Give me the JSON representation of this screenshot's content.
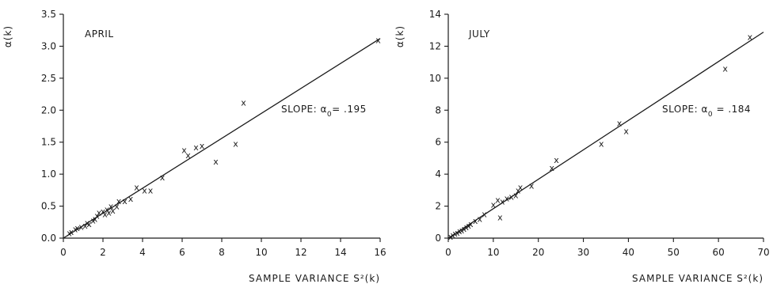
{
  "chart_data": [
    {
      "type": "scatter",
      "panel_label": "APRIL",
      "xlabel": "SAMPLE VARIANCE S²(k)",
      "ylabel": "α(k)",
      "xlim": [
        0,
        16
      ],
      "ylim": [
        0,
        3.5
      ],
      "x_ticks": [
        "0",
        "2",
        "4",
        "6",
        "8",
        "10",
        "12",
        "14",
        "16"
      ],
      "y_ticks": [
        "0.0",
        "0.5",
        "1.0",
        "1.5",
        "2.0",
        "2.5",
        "3.0",
        "3.5"
      ],
      "fit_slope": 0.195,
      "annotation": "SLOPE: α0= .195",
      "marker": "x",
      "points": [
        [
          0.3,
          0.08
        ],
        [
          0.4,
          0.1
        ],
        [
          0.6,
          0.14
        ],
        [
          0.7,
          0.16
        ],
        [
          0.9,
          0.18
        ],
        [
          1.1,
          0.2
        ],
        [
          1.2,
          0.24
        ],
        [
          1.3,
          0.22
        ],
        [
          1.5,
          0.28
        ],
        [
          1.6,
          0.3
        ],
        [
          1.7,
          0.35
        ],
        [
          1.8,
          0.4
        ],
        [
          2.0,
          0.42
        ],
        [
          2.1,
          0.38
        ],
        [
          2.2,
          0.45
        ],
        [
          2.3,
          0.4
        ],
        [
          2.4,
          0.5
        ],
        [
          2.5,
          0.43
        ],
        [
          2.7,
          0.5
        ],
        [
          2.8,
          0.58
        ],
        [
          3.1,
          0.58
        ],
        [
          3.4,
          0.62
        ],
        [
          3.7,
          0.8
        ],
        [
          4.1,
          0.75
        ],
        [
          4.4,
          0.75
        ],
        [
          5.0,
          0.95
        ],
        [
          6.1,
          1.38
        ],
        [
          6.3,
          1.3
        ],
        [
          6.7,
          1.42
        ],
        [
          7.0,
          1.45
        ],
        [
          7.7,
          1.2
        ],
        [
          8.7,
          1.48
        ],
        [
          9.1,
          2.12
        ],
        [
          15.9,
          3.1
        ]
      ]
    },
    {
      "type": "scatter",
      "panel_label": "JULY",
      "xlabel": "SAMPLE VARIANCE S²(k)",
      "ylabel": "α(k)",
      "xlim": [
        0,
        70
      ],
      "ylim": [
        0,
        14
      ],
      "x_ticks": [
        "0",
        "10",
        "20",
        "30",
        "40",
        "50",
        "60",
        "70"
      ],
      "y_ticks": [
        "0",
        "2",
        "4",
        "6",
        "8",
        "10",
        "12",
        "14"
      ],
      "fit_slope": 0.184,
      "annotation": "SLOPE: α0 = .184",
      "marker": "x",
      "points": [
        [
          0.5,
          0.1
        ],
        [
          1.0,
          0.2
        ],
        [
          1.5,
          0.3
        ],
        [
          2.0,
          0.35
        ],
        [
          2.5,
          0.45
        ],
        [
          3.0,
          0.5
        ],
        [
          3.5,
          0.6
        ],
        [
          4.0,
          0.7
        ],
        [
          4.5,
          0.8
        ],
        [
          5.0,
          0.9
        ],
        [
          6.0,
          1.1
        ],
        [
          7.0,
          1.2
        ],
        [
          8.0,
          1.5
        ],
        [
          10.0,
          2.1
        ],
        [
          11.0,
          2.4
        ],
        [
          11.5,
          1.3
        ],
        [
          12.0,
          2.3
        ],
        [
          13.0,
          2.5
        ],
        [
          14.0,
          2.6
        ],
        [
          15.0,
          2.7
        ],
        [
          15.5,
          3.0
        ],
        [
          16.0,
          3.2
        ],
        [
          18.5,
          3.3
        ],
        [
          23.0,
          4.4
        ],
        [
          24.0,
          4.9
        ],
        [
          34.0,
          5.9
        ],
        [
          38.0,
          7.2
        ],
        [
          39.5,
          6.7
        ],
        [
          61.5,
          10.6
        ],
        [
          67.0,
          12.6
        ]
      ]
    }
  ],
  "style": {
    "ink": "#1a1a1a",
    "background": "#ffffff"
  }
}
